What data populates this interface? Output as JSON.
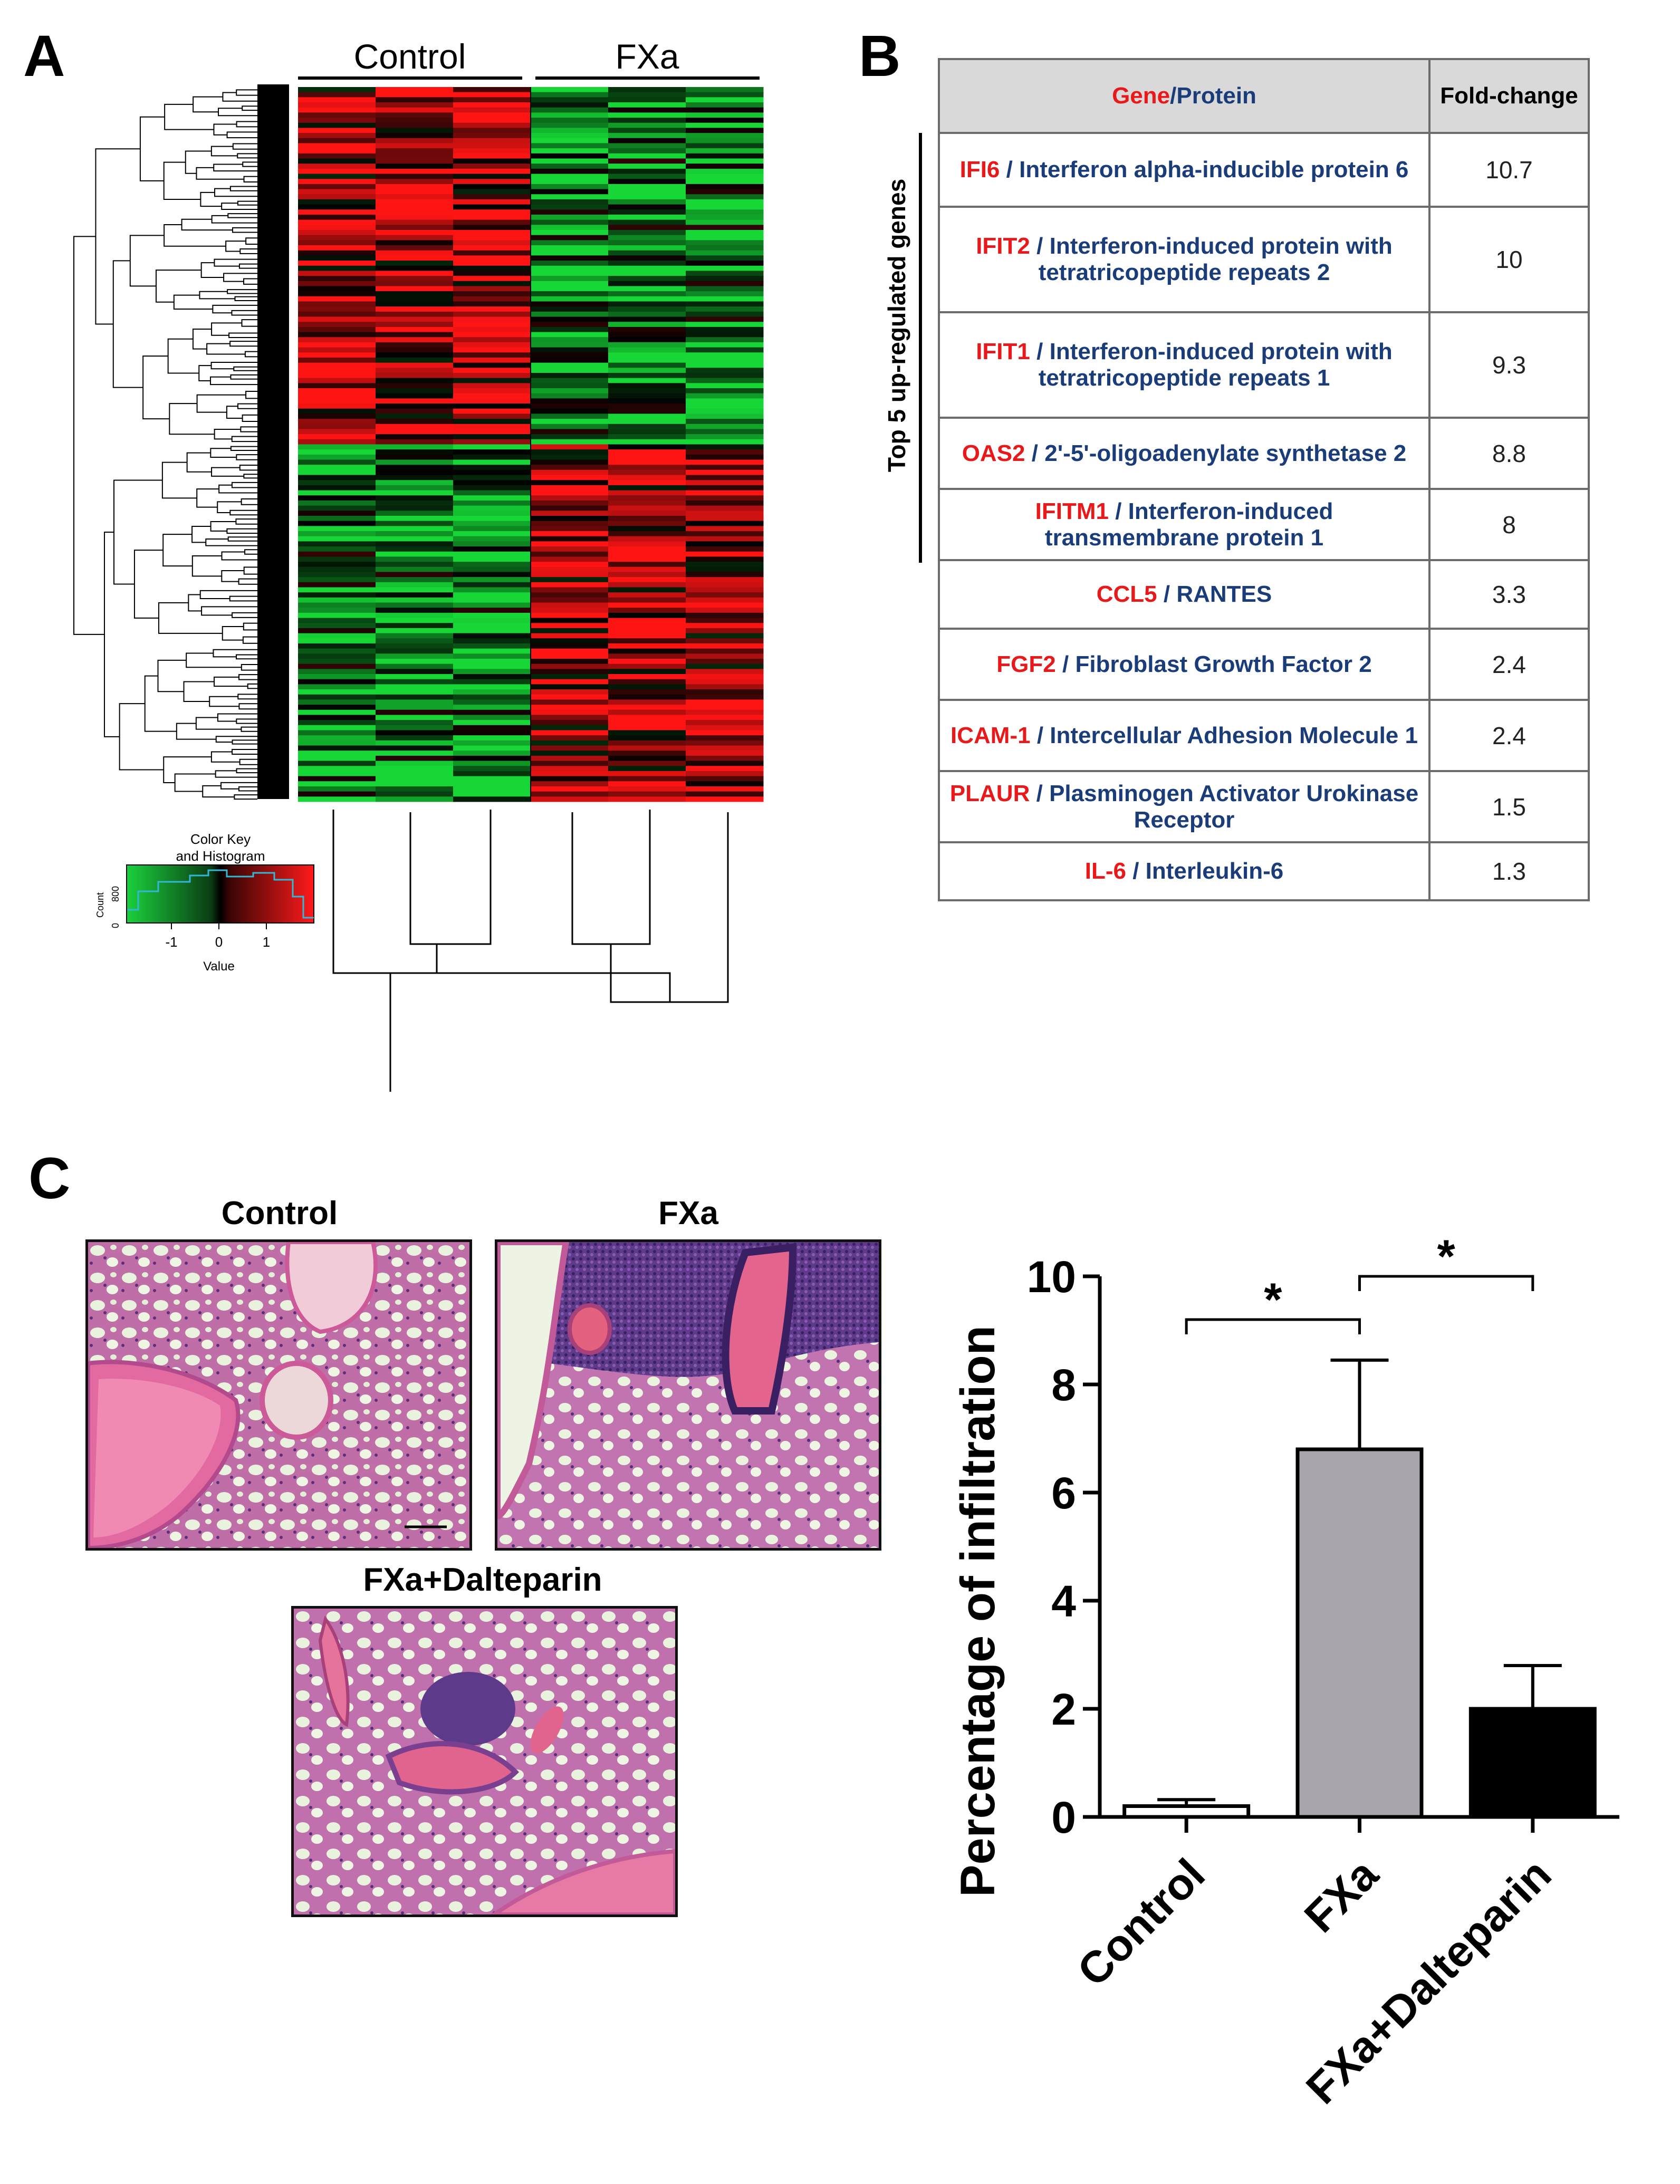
{
  "panels": {
    "a": "A",
    "b": "B",
    "c": "C"
  },
  "heatmap": {
    "group_labels": [
      "Control",
      "FXa"
    ],
    "color_key": {
      "title_line1": "Color Key",
      "title_line2": "and Histogram",
      "y_label": "Count",
      "y_ticks": [
        "0",
        "800"
      ],
      "x_ticks": [
        "-1",
        "0",
        "1"
      ],
      "x_label": "Value"
    },
    "colors": {
      "up": "#ff1a1a",
      "down": "#1ad13d",
      "mid": "#000000"
    }
  },
  "table": {
    "side_label": "Top 5 up-regulated genes",
    "header_gene": "Gene",
    "header_slash": "/",
    "header_protein": "Protein",
    "header_fold": "Fold-change",
    "rows": [
      {
        "gene": "IFI6",
        "protein": "Interferon alpha-inducible protein 6",
        "fold": "10.7"
      },
      {
        "gene": "IFIT2",
        "protein": "Interferon-induced protein with tetratricopeptide repeats 2",
        "fold": "10"
      },
      {
        "gene": "IFIT1",
        "protein": "Interferon-induced protein with tetratricopeptide repeats 1",
        "fold": "9.3"
      },
      {
        "gene": "OAS2",
        "protein": "2'-5'-oligoadenylate synthetase 2",
        "fold": "8.8"
      },
      {
        "gene": "IFITM1",
        "protein": "Interferon-induced transmembrane protein 1",
        "fold": "8"
      },
      {
        "gene": "CCL5",
        "protein": "RANTES",
        "fold": "3.3"
      },
      {
        "gene": "FGF2",
        "protein": "Fibroblast Growth Factor 2",
        "fold": "2.4"
      },
      {
        "gene": "ICAM-1",
        "protein": "Intercellular Adhesion Molecule 1",
        "fold": "2.4"
      },
      {
        "gene": "PLAUR",
        "protein": "Plasminogen Activator Urokinase Receptor",
        "fold": "1.5"
      },
      {
        "gene": "IL-6",
        "protein": "Interleukin-6",
        "fold": "1.3"
      }
    ]
  },
  "micrographs": {
    "control": "Control",
    "fxa": "FXa",
    "fxa_dalteparin": "FXa+Dalteparin"
  },
  "chart_data": {
    "type": "bar",
    "title": "",
    "xlabel": "",
    "ylabel": "Percentage of infiltration",
    "categories": [
      "Control",
      "FXa",
      "FXa+Dalteparin"
    ],
    "values": [
      0.2,
      6.8,
      2.0
    ],
    "errors": [
      0.12,
      1.65,
      0.8
    ],
    "bar_colors": [
      "#ffffff",
      "#a8a6ac",
      "#000000"
    ],
    "ylim": [
      0,
      10
    ],
    "yticks": [
      "0",
      "2",
      "4",
      "6",
      "8",
      "10"
    ],
    "significance": [
      {
        "from": "Control",
        "to": "FXa",
        "label": "*"
      },
      {
        "from": "FXa",
        "to": "FXa+Dalteparin",
        "label": "*"
      }
    ]
  }
}
